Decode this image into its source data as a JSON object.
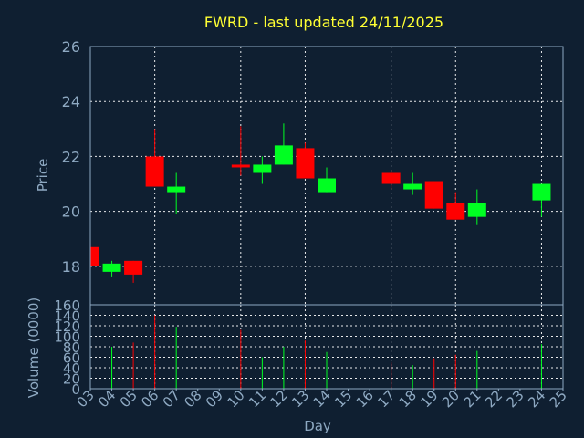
{
  "chart_data": {
    "type": "candlestick",
    "title": "FWRD - last updated 24/11/2025",
    "xlabel": "Day",
    "categories": [
      "03",
      "04",
      "05",
      "06",
      "07",
      "08",
      "09",
      "10",
      "11",
      "12",
      "13",
      "14",
      "15",
      "16",
      "17",
      "18",
      "19",
      "20",
      "21",
      "22",
      "23",
      "24",
      "25"
    ],
    "price": {
      "ylabel": "Price",
      "ylim": [
        16.6,
        26
      ],
      "yticks": [
        18,
        20,
        22,
        24,
        26
      ],
      "candles": [
        {
          "day": "03",
          "open": 18.7,
          "high": 18.7,
          "low": 18.0,
          "close": 18.0
        },
        {
          "day": "04",
          "open": 17.8,
          "high": 18.2,
          "low": 17.6,
          "close": 18.1
        },
        {
          "day": "05",
          "open": 18.2,
          "high": 18.2,
          "low": 17.4,
          "close": 17.7
        },
        {
          "day": "06",
          "open": 22.0,
          "high": 23.0,
          "low": 20.9,
          "close": 20.9
        },
        {
          "day": "07",
          "open": 20.7,
          "high": 21.4,
          "low": 19.9,
          "close": 20.9
        },
        {
          "day": "10",
          "open": 21.7,
          "high": 23.1,
          "low": 21.3,
          "close": 21.6
        },
        {
          "day": "11",
          "open": 21.4,
          "high": 22.0,
          "low": 21.0,
          "close": 21.7
        },
        {
          "day": "12",
          "open": 21.7,
          "high": 23.2,
          "low": 21.7,
          "close": 22.4
        },
        {
          "day": "13",
          "open": 22.3,
          "high": 22.5,
          "low": 21.2,
          "close": 21.2
        },
        {
          "day": "14",
          "open": 20.7,
          "high": 21.6,
          "low": 20.7,
          "close": 21.2
        },
        {
          "day": "17",
          "open": 21.4,
          "high": 21.5,
          "low": 20.8,
          "close": 21.0
        },
        {
          "day": "18",
          "open": 20.8,
          "high": 21.4,
          "low": 20.6,
          "close": 21.0
        },
        {
          "day": "19",
          "open": 21.1,
          "high": 21.1,
          "low": 20.1,
          "close": 20.1
        },
        {
          "day": "20",
          "open": 20.3,
          "high": 20.7,
          "low": 19.7,
          "close": 19.7
        },
        {
          "day": "21",
          "open": 19.8,
          "high": 20.8,
          "low": 19.5,
          "close": 20.3
        },
        {
          "day": "24",
          "open": 20.4,
          "high": 21.0,
          "low": 19.8,
          "close": 21.0
        }
      ]
    },
    "volume": {
      "ylabel": "Volume (0000)",
      "ylim": [
        0,
        160
      ],
      "yticks": [
        0,
        20,
        40,
        60,
        80,
        100,
        120,
        140,
        160
      ],
      "bars": [
        {
          "day": "04",
          "value": 80,
          "direction": "up"
        },
        {
          "day": "05",
          "value": 88,
          "direction": "down"
        },
        {
          "day": "06",
          "value": 140,
          "direction": "down"
        },
        {
          "day": "07",
          "value": 118,
          "direction": "up"
        },
        {
          "day": "10",
          "value": 112,
          "direction": "down"
        },
        {
          "day": "11",
          "value": 60,
          "direction": "up"
        },
        {
          "day": "12",
          "value": 80,
          "direction": "up"
        },
        {
          "day": "13",
          "value": 92,
          "direction": "down"
        },
        {
          "day": "14",
          "value": 70,
          "direction": "up"
        },
        {
          "day": "17",
          "value": 50,
          "direction": "down"
        },
        {
          "day": "18",
          "value": 45,
          "direction": "up"
        },
        {
          "day": "19",
          "value": 58,
          "direction": "down"
        },
        {
          "day": "20",
          "value": 65,
          "direction": "down"
        },
        {
          "day": "21",
          "value": 72,
          "direction": "up"
        },
        {
          "day": "24",
          "value": 85,
          "direction": "up"
        }
      ]
    },
    "colors": {
      "background": "#0f1f31",
      "up": "#00ff22",
      "down": "#ff0000",
      "grid": "#ffffff",
      "title": "#ffff33",
      "text": "#8ea9c2"
    },
    "grid": true
  }
}
